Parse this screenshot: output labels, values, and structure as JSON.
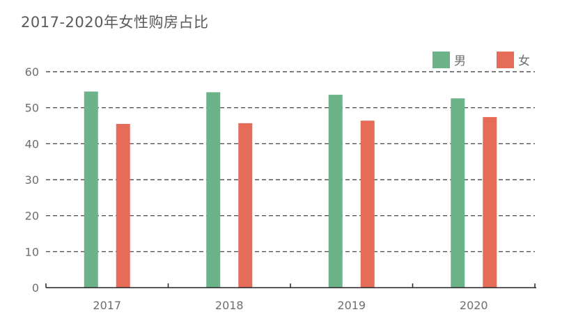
{
  "chart_data": {
    "type": "bar",
    "title": "2017-2020年女性购房占比",
    "categories": [
      "2017",
      "2018",
      "2019",
      "2020"
    ],
    "series": [
      {
        "name": "男",
        "values": [
          54.5,
          54.3,
          53.6,
          52.6
        ],
        "color": "#6db38a"
      },
      {
        "name": "女",
        "values": [
          45.5,
          45.7,
          46.4,
          47.4
        ],
        "color": "#e66c5a"
      }
    ],
    "ylim": [
      0,
      60
    ],
    "yticks": [
      0,
      10,
      20,
      30,
      40,
      50,
      60
    ],
    "grid": true,
    "legend": "top-right",
    "xlabel": "",
    "ylabel": ""
  }
}
